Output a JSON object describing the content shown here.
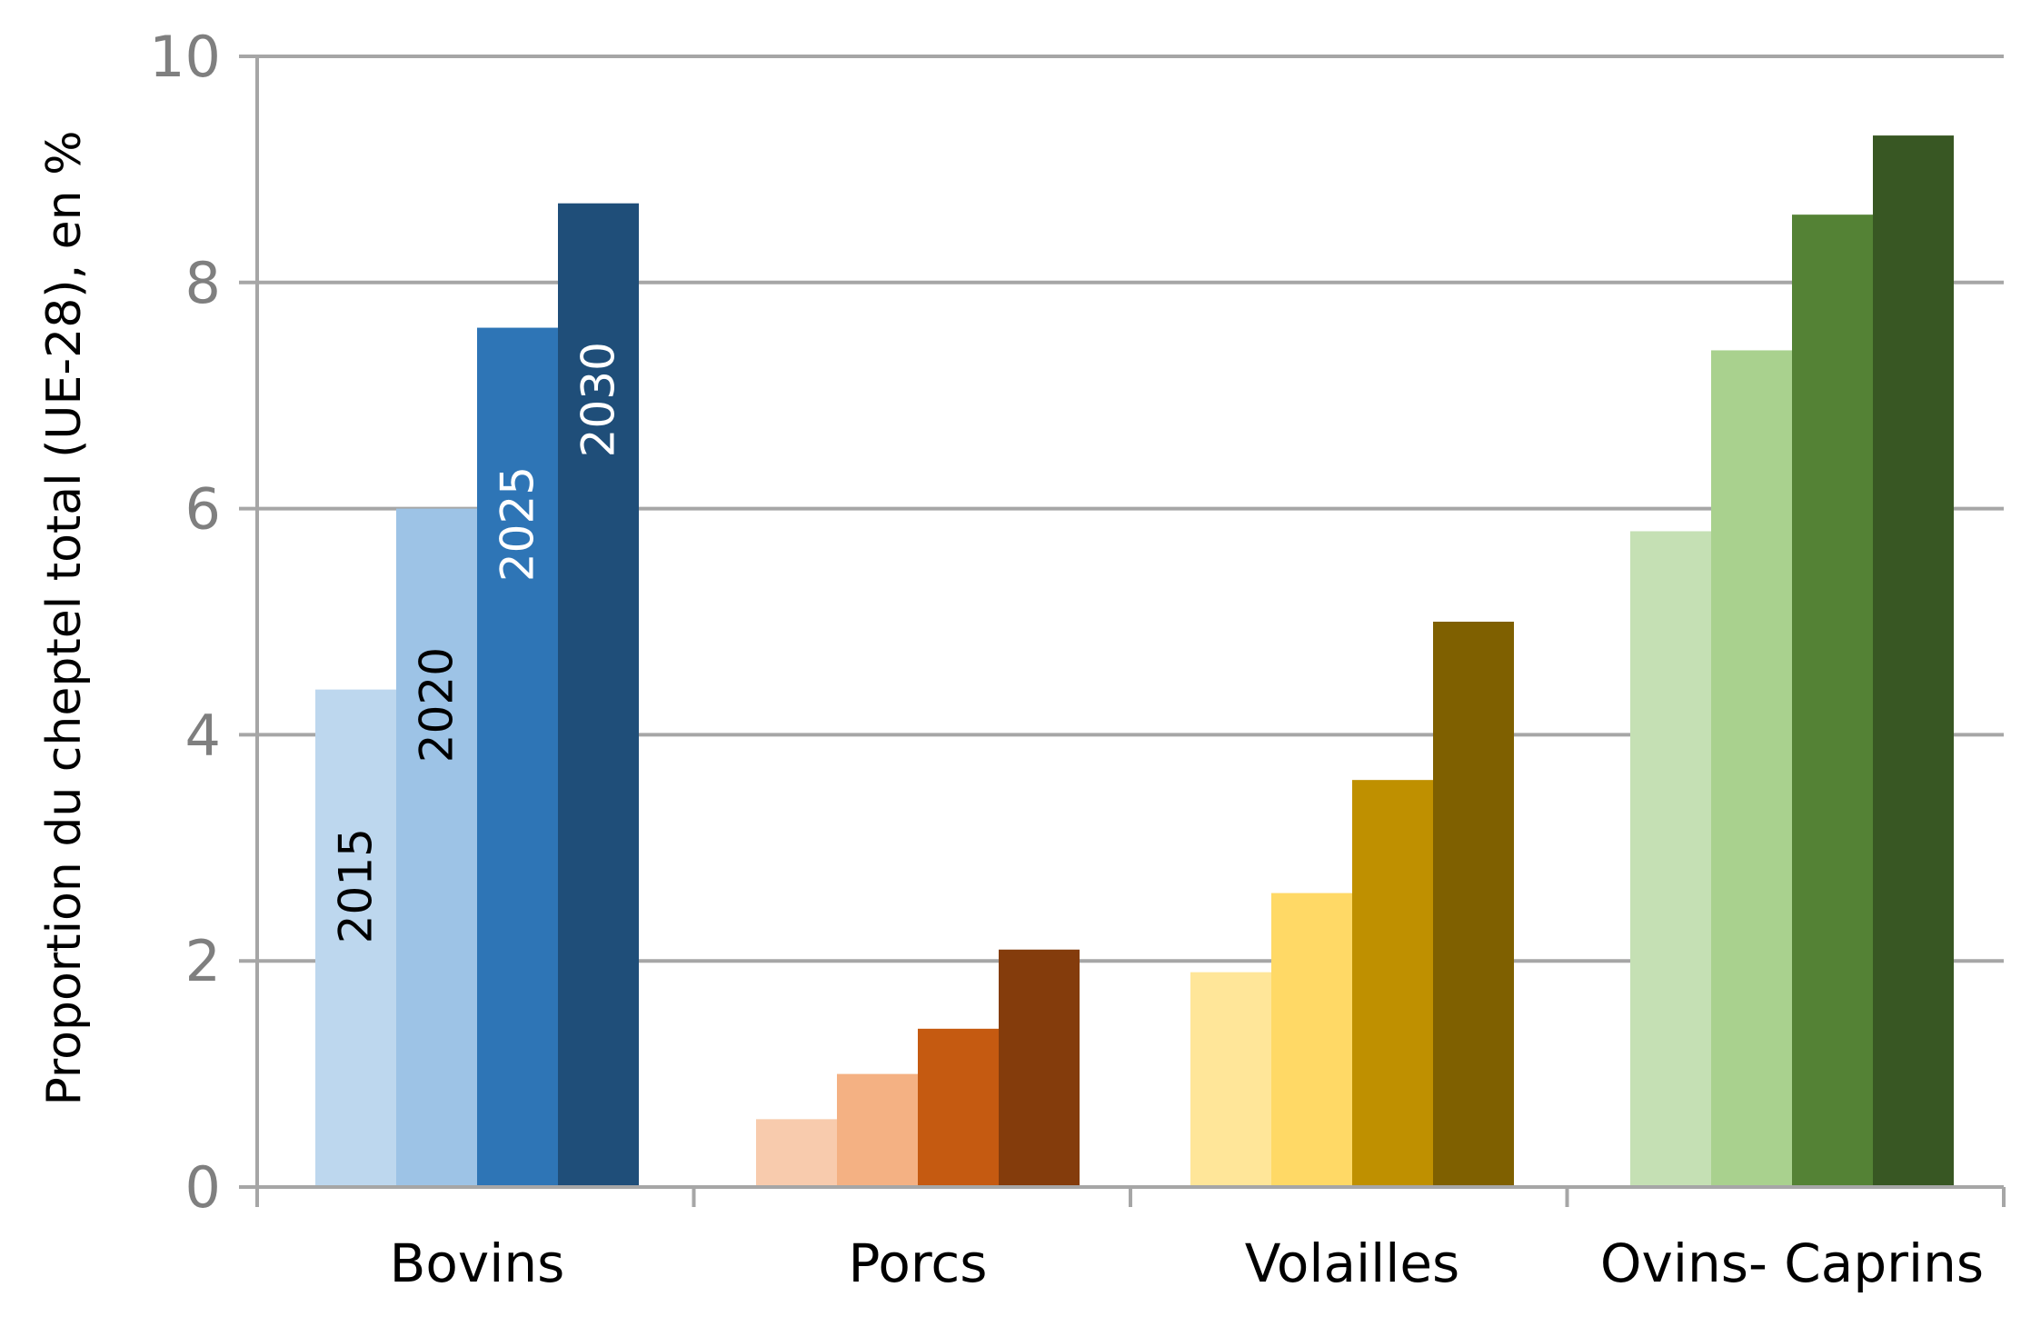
{
  "chart_data": {
    "type": "bar",
    "title": "",
    "xlabel": "",
    "ylabel": "Proportion du cheptel total (UE-28), en %",
    "ylim": [
      0,
      10
    ],
    "yticks": [
      0,
      2,
      4,
      6,
      8,
      10
    ],
    "grid": true,
    "legend": "none",
    "categories": [
      "Bovins",
      "Porcs",
      "Volailles",
      "Ovins- Caprins"
    ],
    "series": [
      {
        "name": "2015",
        "values": [
          4.4,
          0.6,
          1.9,
          5.8
        ]
      },
      {
        "name": "2020",
        "values": [
          6.0,
          1.0,
          2.6,
          7.4
        ]
      },
      {
        "name": "2025",
        "values": [
          7.6,
          1.4,
          3.6,
          8.6
        ]
      },
      {
        "name": "2030",
        "values": [
          8.7,
          2.1,
          5.0,
          9.3
        ]
      }
    ],
    "colors": [
      [
        "#bdd7ee",
        "#9dc3e6",
        "#2e75b6",
        "#1f4e79"
      ],
      [
        "#f8cbad",
        "#f4b183",
        "#c55a11",
        "#843c0c"
      ],
      [
        "#ffe699",
        "#ffd966",
        "#bf9000",
        "#7f6000"
      ],
      [
        "#c5e0b4",
        "#a9d18e",
        "#548235",
        "#385723"
      ]
    ],
    "bar_label_colors": [
      "#000000",
      "#000000",
      "#ffffff",
      "#ffffff"
    ],
    "axis_color": "#a6a6a6"
  }
}
